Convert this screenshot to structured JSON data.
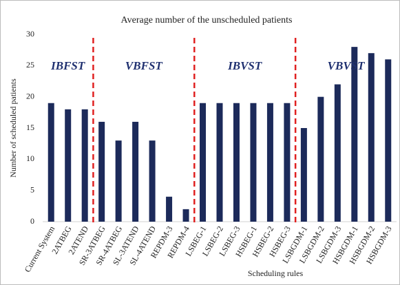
{
  "chart_data": {
    "type": "bar",
    "title": "Average number of the unscheduled patients",
    "x_label": "Scheduling rules",
    "y_label": "Number of scheduled patients",
    "categories": [
      "Current System",
      "2ATBEG",
      "2ATEND",
      "SR-3ATBEG",
      "SR-4ATBEG",
      "SL-3ATEND",
      "SL-4ATEND",
      "REPDM-3",
      "REPDM-4",
      "LSBEG-1",
      "LSBEG-2",
      "LSBEG-3",
      "HSBEG-1",
      "HSBEG-2",
      "HSBEG-3",
      "LSBGDM-1",
      "LSBGDM-2",
      "LSBGDM-3",
      "HSBGDM-1",
      "HSBGDM-2",
      "HSBGDM-3"
    ],
    "values": [
      19,
      18,
      18,
      16,
      13,
      16,
      13,
      4,
      2,
      19,
      19,
      19,
      19,
      19,
      19,
      15,
      20,
      22,
      28,
      27,
      26
    ],
    "color": "#1c2a5a",
    "annotations": [
      "IBFST",
      "VBFST",
      "IBVST",
      "VBVST"
    ],
    "ylim": [
      0,
      30
    ],
    "yticks": [
      0,
      5,
      10,
      15,
      20,
      25,
      30
    ],
    "grid": false
  }
}
